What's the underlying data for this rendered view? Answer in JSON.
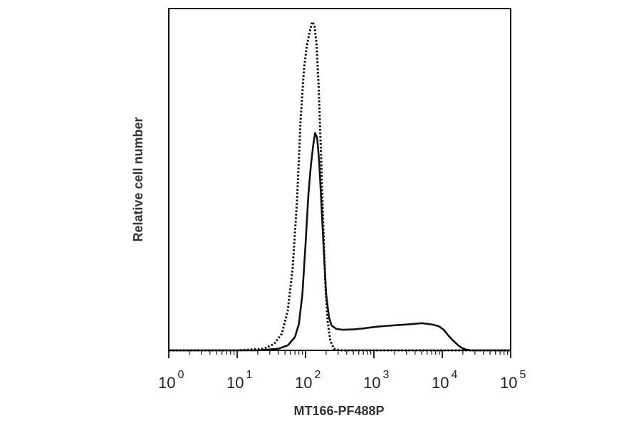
{
  "chart_data": {
    "type": "line",
    "title": "",
    "xlabel": "MT166-PF488P",
    "ylabel": "Relative cell number",
    "x_scale": "log",
    "xlim": [
      1,
      100000
    ],
    "ylim": [
      0,
      1
    ],
    "grid": false,
    "legend": "none",
    "x_ticks": [
      {
        "base": "10",
        "exp": "0",
        "value": 1
      },
      {
        "base": "10",
        "exp": "1",
        "value": 10
      },
      {
        "base": "10",
        "exp": "2",
        "value": 100
      },
      {
        "base": "10",
        "exp": "3",
        "value": 1000
      },
      {
        "base": "10",
        "exp": "4",
        "value": 10000
      },
      {
        "base": "10",
        "exp": "5",
        "value": 100000
      }
    ],
    "series": [
      {
        "style": "dotted",
        "color": "#111111",
        "points": [
          [
            1,
            0.0
          ],
          [
            10,
            0.0
          ],
          [
            25,
            0.005
          ],
          [
            35,
            0.02
          ],
          [
            45,
            0.05
          ],
          [
            55,
            0.12
          ],
          [
            65,
            0.25
          ],
          [
            75,
            0.45
          ],
          [
            85,
            0.7
          ],
          [
            95,
            0.85
          ],
          [
            105,
            0.92
          ],
          [
            115,
            0.96
          ],
          [
            125,
            0.99
          ],
          [
            135,
            0.98
          ],
          [
            145,
            0.92
          ],
          [
            155,
            0.8
          ],
          [
            168,
            0.6
          ],
          [
            180,
            0.4
          ],
          [
            195,
            0.2
          ],
          [
            210,
            0.09
          ],
          [
            230,
            0.03
          ],
          [
            260,
            0.005
          ],
          [
            320,
            0.0
          ],
          [
            100000,
            0.0
          ]
        ]
      },
      {
        "style": "solid",
        "color": "#111111",
        "points": [
          [
            1,
            0.0
          ],
          [
            20,
            0.0
          ],
          [
            40,
            0.005
          ],
          [
            55,
            0.015
          ],
          [
            70,
            0.04
          ],
          [
            80,
            0.08
          ],
          [
            90,
            0.17
          ],
          [
            100,
            0.32
          ],
          [
            110,
            0.47
          ],
          [
            120,
            0.56
          ],
          [
            130,
            0.62
          ],
          [
            138,
            0.655
          ],
          [
            148,
            0.64
          ],
          [
            158,
            0.57
          ],
          [
            170,
            0.45
          ],
          [
            185,
            0.3
          ],
          [
            200,
            0.17
          ],
          [
            220,
            0.1
          ],
          [
            240,
            0.075
          ],
          [
            280,
            0.065
          ],
          [
            350,
            0.062
          ],
          [
            500,
            0.063
          ],
          [
            700,
            0.066
          ],
          [
            900,
            0.069
          ],
          [
            1200,
            0.072
          ],
          [
            1600,
            0.074
          ],
          [
            2200,
            0.076
          ],
          [
            3000,
            0.078
          ],
          [
            4000,
            0.08
          ],
          [
            5000,
            0.082
          ],
          [
            6000,
            0.08
          ],
          [
            7500,
            0.077
          ],
          [
            9000,
            0.072
          ],
          [
            10500,
            0.062
          ],
          [
            12000,
            0.047
          ],
          [
            14000,
            0.032
          ],
          [
            16500,
            0.018
          ],
          [
            19000,
            0.008
          ],
          [
            22000,
            0.003
          ],
          [
            26000,
            0.0
          ],
          [
            100000,
            0.0
          ]
        ]
      }
    ]
  }
}
